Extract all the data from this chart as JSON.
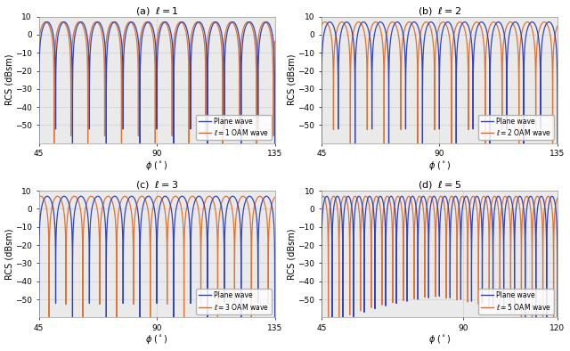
{
  "panels": [
    {
      "title_pre": "(a)",
      "ell_val": 1,
      "xlabel": "$\\phi$ ($^\\circ$)",
      "ylabel": "RCS (dBsm)",
      "xlim": [
        45,
        135
      ],
      "ylim": [
        -60,
        10
      ],
      "xticks": [
        45,
        90,
        135
      ],
      "yticks": [
        -50,
        -40,
        -30,
        -20,
        -10,
        0,
        10
      ],
      "legend_line1": "Plane wave",
      "legend_line2": "$\\ell = 1$ OAM wave",
      "num_lobes_pw": 14,
      "shift_deg": 0.6,
      "peak_db": 7.0
    },
    {
      "title_pre": "(b)",
      "ell_val": 2,
      "xlabel": "$\\phi$ ($^\\circ$)",
      "ylabel": "RCS (dBsm)",
      "xlim": [
        45,
        135
      ],
      "ylim": [
        -60,
        10
      ],
      "xticks": [
        45,
        90,
        135
      ],
      "yticks": [
        -50,
        -40,
        -30,
        -20,
        -10,
        0,
        10
      ],
      "legend_line1": "Plane wave",
      "legend_line2": "$\\ell = 2$ OAM wave",
      "num_lobes_pw": 14,
      "shift_deg": 1.8,
      "peak_db": 7.0
    },
    {
      "title_pre": "(c)",
      "ell_val": 3,
      "xlabel": "$\\phi$ ($^\\circ$)",
      "ylabel": "RCS (dBsm)",
      "xlim": [
        45,
        135
      ],
      "ylim": [
        -60,
        10
      ],
      "xticks": [
        45,
        90,
        135
      ],
      "yticks": [
        -50,
        -40,
        -30,
        -20,
        -10,
        0,
        10
      ],
      "legend_line1": "Plane wave",
      "legend_line2": "$\\ell = 3$ OAM wave",
      "num_lobes_pw": 14,
      "shift_deg": 2.5,
      "peak_db": 7.0
    },
    {
      "title_pre": "(d)",
      "ell_val": 5,
      "xlabel": "$\\phi$ ($^\\circ$)",
      "ylabel": "RCS (dBsm)",
      "xlim": [
        45,
        120
      ],
      "ylim": [
        -60,
        10
      ],
      "xticks": [
        45,
        90,
        120
      ],
      "yticks": [
        -50,
        -40,
        -30,
        -20,
        -10,
        0,
        10
      ],
      "legend_line1": "Plane wave",
      "legend_line2": "$\\ell = 5$ OAM wave",
      "num_lobes_pw": 22,
      "shift_deg": 1.2,
      "peak_db": 7.0
    }
  ],
  "blue": "#3344bb",
  "orange": "#dd6622",
  "bg_color": "#eaeaea",
  "grid_color": "#bbbbbb",
  "fig_bg": "#ffffff",
  "title_fontsize": 8,
  "label_fontsize": 7,
  "tick_fontsize": 6.5,
  "legend_fontsize": 5.5,
  "lw_blue": 0.9,
  "lw_orange": 0.9
}
